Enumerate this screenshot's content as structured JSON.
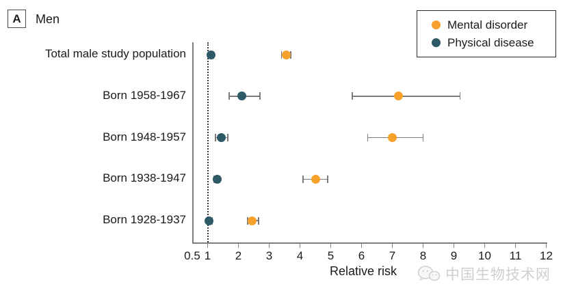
{
  "panel": {
    "label": "A",
    "title": "Men"
  },
  "legend": {
    "items": [
      {
        "label": "Mental disorder",
        "color": "#F6A12B"
      },
      {
        "label": "Physical disease",
        "color": "#2E5A68"
      }
    ]
  },
  "watermark": {
    "text": "中国生物技术网"
  },
  "chart_data": {
    "type": "scatter",
    "subtype": "forest-plot-with-error-bars",
    "title": "Men",
    "xlabel": "Relative risk",
    "xlim": [
      0.5,
      12
    ],
    "x_tick_labels": [
      0.5,
      1,
      2,
      3,
      4,
      5,
      6,
      7,
      8,
      9,
      10,
      11,
      12
    ],
    "reference_line_x": 1,
    "grid": false,
    "legend_position": "top-right",
    "categories": [
      "Total male study population",
      "Born 1958-1967",
      "Born 1948-1957",
      "Born 1938-1947",
      "Born 1928-1937"
    ],
    "series": [
      {
        "name": "Mental disorder",
        "color": "#F6A12B",
        "values": [
          3.55,
          7.2,
          7.0,
          4.5,
          2.45
        ],
        "ci_low": [
          3.4,
          5.7,
          6.2,
          4.1,
          2.3
        ],
        "ci_high": [
          3.7,
          9.2,
          8.0,
          4.9,
          2.65
        ]
      },
      {
        "name": "Physical disease",
        "color": "#2E5A68",
        "values": [
          1.1,
          2.1,
          1.45,
          1.3,
          1.05
        ],
        "ci_low": [
          1.05,
          1.7,
          1.25,
          1.2,
          1.0
        ],
        "ci_high": [
          1.2,
          2.7,
          1.65,
          1.4,
          1.15
        ]
      }
    ],
    "axis_color": "#7d7d7d",
    "errorbar_color": "#7a7a7a",
    "text_color": "#1a1a1a"
  }
}
